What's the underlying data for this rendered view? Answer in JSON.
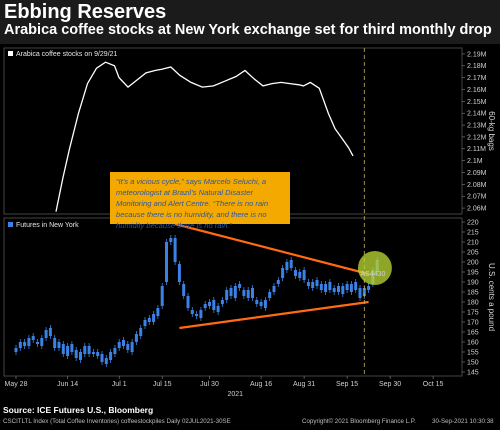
{
  "header": {
    "title": "Ebbing Reserves",
    "subtitle": "Arabica coffee stocks at New York exchange set for third monthly drop"
  },
  "colors": {
    "background": "#000000",
    "stocks_line": "#ffffff",
    "candles": "#3b82e6",
    "trend_lines": "#ff6a13",
    "quote_box": "#f4a900",
    "quote_text": "#2a57a7",
    "highlight_circle": "#b7d433",
    "date_marker": "#c8b45a"
  },
  "quote": {
    "text": "“It’s a vicious cycle,” says Marcelo Seluchi, a meteorologist at Brazil’s Natural Disaster Monitoring and Alert Centre. “There is no rain because there is no humidity, and there is no humidity because there is no rain.”"
  },
  "chart_data": [
    {
      "type": "line",
      "legend": [
        "Arabica coffee stocks on 9/29/21"
      ],
      "ylabel": "60-kg bags",
      "ylim": [
        2.055,
        2.195
      ],
      "yticks": [
        "2.06M",
        "2.07M",
        "2.08M",
        "2.09M",
        "2.1M",
        "2.11M",
        "2.12M",
        "2.13M",
        "2.14M",
        "2.15M",
        "2.16M",
        "2.17M",
        "2.18M",
        "2.19M"
      ],
      "ytick_values": [
        2.06,
        2.07,
        2.08,
        2.09,
        2.1,
        2.11,
        2.12,
        2.13,
        2.14,
        2.15,
        2.16,
        2.17,
        2.18,
        2.19
      ],
      "grid": false,
      "series": [
        {
          "x": [
            0,
            3,
            6,
            10,
            14,
            18,
            22,
            26,
            28,
            32,
            36,
            40,
            44,
            47,
            51,
            55,
            60,
            65,
            70,
            75,
            80,
            84,
            88,
            92,
            96,
            100,
            104,
            108,
            110,
            113,
            117,
            121,
            124,
            127,
            130,
            132
          ],
          "values": [
            2.057,
            2.085,
            2.11,
            2.14,
            2.165,
            2.178,
            2.183,
            2.18,
            2.17,
            2.162,
            2.168,
            2.174,
            2.176,
            2.177,
            2.179,
            2.172,
            2.166,
            2.162,
            2.163,
            2.167,
            2.171,
            2.176,
            2.169,
            2.163,
            2.165,
            2.166,
            2.165,
            2.164,
            2.163,
            2.166,
            2.161,
            2.14,
            2.127,
            2.119,
            2.111,
            2.104
          ]
        }
      ]
    },
    {
      "type": "candlestick",
      "legend": [
        "Futures in New York"
      ],
      "ylabel": "U.S. cents a pound",
      "ylim": [
        143,
        222
      ],
      "yticks": [
        "145",
        "150",
        "155",
        "160",
        "165",
        "170",
        "175",
        "180",
        "185",
        "190",
        "195",
        "200",
        "205",
        "210",
        "215",
        "220"
      ],
      "ytick_values": [
        145,
        150,
        155,
        160,
        165,
        170,
        175,
        180,
        185,
        190,
        195,
        200,
        205,
        210,
        215,
        220
      ],
      "x_ticks": [
        "May 28",
        "Jun 14",
        "Jul 1",
        "Jul 15",
        "Jul 30",
        "Aug 16",
        "Aug 31",
        "Sep 15",
        "Sep 30",
        "Oct 15"
      ],
      "x_tick_index": [
        0,
        12,
        24,
        34,
        45,
        57,
        67,
        77,
        87,
        97
      ],
      "year_label": "2021",
      "annotation": "AS4430",
      "current_marker_index": 81,
      "trend_lines": [
        {
          "from": [
            37,
            219
          ],
          "to": [
            82,
            194
          ]
        },
        {
          "from": [
            38,
            167
          ],
          "to": [
            82,
            180
          ]
        }
      ],
      "series": [
        {
          "name": "close",
          "values": [
            157,
            160,
            158,
            162,
            161,
            159,
            162,
            166,
            163,
            157,
            160,
            154,
            158,
            155,
            152,
            155,
            158,
            154,
            155,
            153,
            150,
            152,
            155,
            157,
            160,
            158,
            156,
            160,
            164,
            167,
            171,
            170,
            174,
            177,
            188,
            210,
            212,
            200,
            190,
            183,
            177,
            174,
            173,
            176,
            179,
            180,
            176,
            178,
            181,
            186,
            183,
            188,
            187,
            183,
            186,
            182,
            179,
            178,
            181,
            185,
            188,
            191,
            197,
            200,
            197,
            193,
            195,
            191,
            188,
            190,
            188,
            186,
            189,
            186,
            187,
            185,
            188,
            186,
            189,
            186,
            182,
            187,
            188,
            196,
            201
          ]
        },
        {
          "name": "open",
          "values": [
            155,
            157,
            160,
            158,
            163,
            160,
            158,
            162,
            167,
            162,
            157,
            159,
            153,
            159,
            156,
            151,
            154,
            158,
            154,
            155,
            154,
            149,
            151,
            154,
            157,
            161,
            159,
            155,
            160,
            163,
            168,
            172,
            170,
            173,
            178,
            190,
            210,
            212,
            199,
            189,
            183,
            176,
            174,
            172,
            177,
            178,
            181,
            175,
            179,
            181,
            187,
            182,
            189,
            186,
            182,
            187,
            181,
            180,
            177,
            182,
            185,
            189,
            192,
            196,
            201,
            196,
            192,
            196,
            190,
            187,
            191,
            189,
            185,
            190,
            185,
            188,
            184,
            189,
            185,
            190,
            187,
            183,
            186,
            189,
            195
          ]
        }
      ]
    }
  ],
  "footer": {
    "source": "Source: ICE Futures U.S., Bloomberg",
    "index_line": "CSCITLTL Index (Total Coffee Inventories) coffeestockpiles  Daily 02JUL2021-30SE",
    "copyright": "Copyright© 2021 Bloomberg Finance L.P.",
    "timestamp": "30-Sep-2021 10:30:38"
  }
}
